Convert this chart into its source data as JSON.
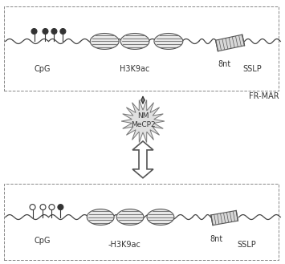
{
  "fig_width": 3.55,
  "fig_height": 3.29,
  "dpi": 100,
  "fr_mar_label": "FR-MAR",
  "top_labels": {
    "cpg": "CpG",
    "h3k9ac": "H3K9ac",
    "nt": "8nt",
    "sslp": "SSLP"
  },
  "bottom_labels": {
    "cpg": "CpG",
    "h3k9ac": "-H3K9ac",
    "nt": "8nt",
    "sslp": "SSLP"
  },
  "nm_text": "NM\nMeCP2",
  "line_color": "#444444",
  "nuc_fill": "#e8e8e8",
  "nuc_edge": "#555555",
  "sslp_fill": "#d8d8d8",
  "starburst_fill": "#e0e0e0",
  "starburst_edge": "#777777",
  "arrow_edge": "#555555",
  "box_edge": "#888888",
  "text_color": "#333333"
}
